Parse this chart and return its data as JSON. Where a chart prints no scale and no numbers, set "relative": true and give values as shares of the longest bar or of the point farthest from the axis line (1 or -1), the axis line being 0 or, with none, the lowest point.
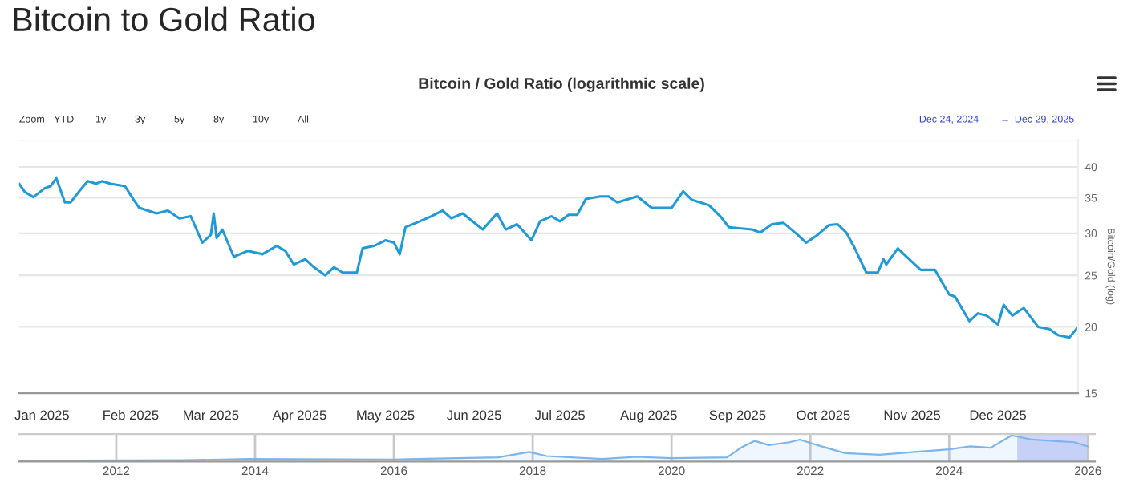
{
  "chart_data": [
    {
      "type": "line",
      "title": "Bitcoin to Gold Ratio",
      "subtitle": "Bitcoin / Gold Ratio (logarithmic scale)",
      "ylabel": "Bitcoin/Gold (log)",
      "annotations": [
        "Zoom",
        "YTD",
        "1y",
        "3y",
        "5y",
        "8y",
        "10y",
        "All",
        "Dec 24, 2024",
        "→",
        "Dec 29, 2025"
      ],
      "x": [
        "2024-12-24",
        "2024-12-26",
        "2024-12-29",
        "2025-01-02",
        "2025-01-04",
        "2025-01-06",
        "2025-01-09",
        "2025-01-11",
        "2025-01-14",
        "2025-01-17",
        "2025-01-20",
        "2025-01-22",
        "2025-01-25",
        "2025-01-30",
        "2025-02-02",
        "2025-02-04",
        "2025-02-10",
        "2025-02-14",
        "2025-02-18",
        "2025-02-22",
        "2025-02-26",
        "2025-03-01",
        "2025-03-02",
        "2025-03-03",
        "2025-03-05",
        "2025-03-09",
        "2025-03-14",
        "2025-03-19",
        "2025-03-24",
        "2025-03-27",
        "2025-03-30",
        "2025-04-03",
        "2025-04-06",
        "2025-04-10",
        "2025-04-13",
        "2025-04-16",
        "2025-04-21",
        "2025-04-23",
        "2025-04-27",
        "2025-05-01",
        "2025-05-04",
        "2025-05-06",
        "2025-05-08",
        "2025-05-13",
        "2025-05-17",
        "2025-05-21",
        "2025-05-24",
        "2025-05-28",
        "2025-06-04",
        "2025-06-09",
        "2025-06-12",
        "2025-06-16",
        "2025-06-21",
        "2025-06-24",
        "2025-06-28",
        "2025-07-01",
        "2025-07-04",
        "2025-07-07",
        "2025-07-10",
        "2025-07-15",
        "2025-07-18",
        "2025-07-21",
        "2025-07-28",
        "2025-08-02",
        "2025-08-09",
        "2025-08-13",
        "2025-08-16",
        "2025-08-22",
        "2025-08-26",
        "2025-08-29",
        "2025-09-06",
        "2025-09-09",
        "2025-09-13",
        "2025-09-17",
        "2025-09-22",
        "2025-09-25",
        "2025-09-29",
        "2025-10-03",
        "2025-10-06",
        "2025-10-09",
        "2025-10-12",
        "2025-10-16",
        "2025-10-20",
        "2025-10-22",
        "2025-10-23",
        "2025-10-27",
        "2025-10-31",
        "2025-11-04",
        "2025-11-09",
        "2025-11-14",
        "2025-11-16",
        "2025-11-21",
        "2025-11-24",
        "2025-11-27",
        "2025-12-01",
        "2025-12-03",
        "2025-12-06",
        "2025-12-10",
        "2025-12-15",
        "2025-12-19",
        "2025-12-22",
        "2025-12-26",
        "2025-12-29"
      ],
      "series": [
        {
          "color": "#1f9ad6",
          "values": [
            37.2,
            35.9,
            35.1,
            36.5,
            36.8,
            38.1,
            34.3,
            34.3,
            36.0,
            37.6,
            37.2,
            37.6,
            37.2,
            36.8,
            34.7,
            33.5,
            32.7,
            33.1,
            32.0,
            32.3,
            28.8,
            29.8,
            32.7,
            29.4,
            30.5,
            27.1,
            27.8,
            27.4,
            28.4,
            27.8,
            26.2,
            26.8,
            25.9,
            25.0,
            25.9,
            25.3,
            25.3,
            28.1,
            28.4,
            29.1,
            28.8,
            27.4,
            30.8,
            31.6,
            32.3,
            33.1,
            32.0,
            32.7,
            30.5,
            32.7,
            30.5,
            31.2,
            29.1,
            31.6,
            32.3,
            31.6,
            32.5,
            32.5,
            34.8,
            35.2,
            35.2,
            34.3,
            35.2,
            33.5,
            33.5,
            36.0,
            34.7,
            33.9,
            32.3,
            30.8,
            30.5,
            30.1,
            31.2,
            31.4,
            29.8,
            28.8,
            29.8,
            31.1,
            31.2,
            30.1,
            28.1,
            25.3,
            25.3,
            26.8,
            26.2,
            28.1,
            26.8,
            25.6,
            25.6,
            23.0,
            22.8,
            20.5,
            21.2,
            21.0,
            20.2,
            22.0,
            21.0,
            21.7,
            20.0,
            19.8,
            19.3,
            19.1,
            20.0
          ]
        }
      ],
      "xlim": [
        "2024-12-24",
        "2025-12-29"
      ],
      "xticks": [
        {
          "value": "2025-01-01",
          "label": "Jan 2025"
        },
        {
          "value": "2025-02-01",
          "label": "Feb 2025"
        },
        {
          "value": "2025-03-01",
          "label": "Mar 2025"
        },
        {
          "value": "2025-04-01",
          "label": "Apr 2025"
        },
        {
          "value": "2025-05-01",
          "label": "May 2025"
        },
        {
          "value": "2025-06-01",
          "label": "Jun 2025"
        },
        {
          "value": "2025-07-01",
          "label": "Jul 2025"
        },
        {
          "value": "2025-08-01",
          "label": "Aug 2025"
        },
        {
          "value": "2025-09-01",
          "label": "Sep 2025"
        },
        {
          "value": "2025-10-01",
          "label": "Oct 2025"
        },
        {
          "value": "2025-11-01",
          "label": "Nov 2025"
        },
        {
          "value": "2025-12-01",
          "label": "Dec 2025"
        }
      ],
      "log": true,
      "ylim": [
        15,
        45
      ],
      "yticks": [
        15,
        20,
        25,
        30,
        35,
        40,
        {
          "value": 45,
          "label": null
        }
      ],
      "grid": "y"
    },
    {
      "type": "area",
      "relative": true,
      "tick_labels": "x",
      "grid": "x",
      "x": [
        2010.6,
        2013.0,
        2013.9,
        2016.0,
        2017.5,
        2017.95,
        2018.2,
        2019.0,
        2019.5,
        2020.0,
        2020.8,
        2021.0,
        2021.2,
        2021.4,
        2021.7,
        2021.85,
        2022.1,
        2022.5,
        2023.0,
        2023.5,
        2024.0,
        2024.3,
        2024.6,
        2024.9,
        2025.2,
        2025.5,
        2025.8,
        2026.0
      ],
      "series": [
        {
          "color": "#7cb5ec",
          "values": [
            0.03,
            0.05,
            0.1,
            0.08,
            0.16,
            0.37,
            0.21,
            0.1,
            0.18,
            0.13,
            0.16,
            0.53,
            0.79,
            0.63,
            0.74,
            0.84,
            0.63,
            0.32,
            0.26,
            0.37,
            0.47,
            0.58,
            0.53,
            1.0,
            0.84,
            0.79,
            0.74,
            0.58
          ]
        }
      ],
      "xlim": [
        2010.6,
        2026.1
      ],
      "xticks": [
        2012,
        2014,
        2016,
        2018,
        2020,
        2022,
        2024,
        2026
      ],
      "bands": [
        {
          "axis": "x",
          "from": 2024.98,
          "to": 2025.99,
          "color": "#c5cbf7"
        }
      ]
    }
  ]
}
